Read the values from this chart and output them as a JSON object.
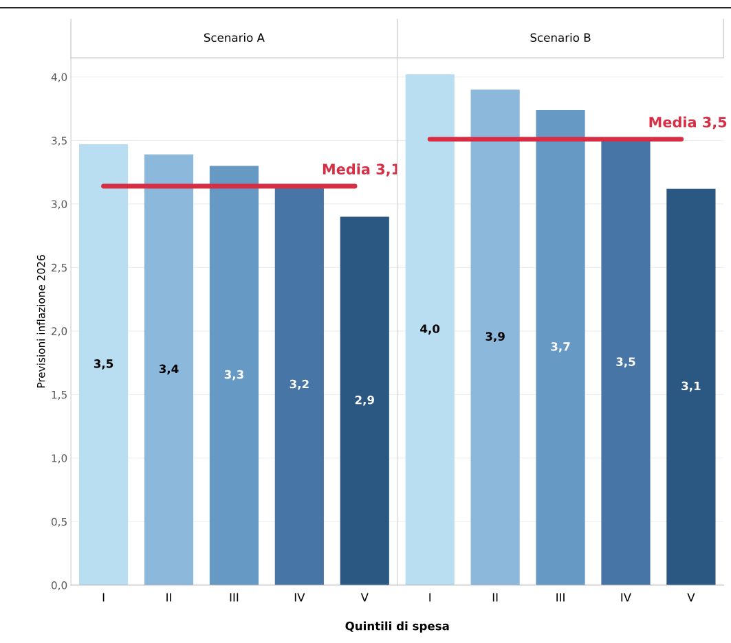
{
  "chart_data": [
    {
      "type": "bar",
      "title": "Scenario A",
      "xlabel": "Quintili di spesa",
      "ylabel": "Previsioni inflazione 2026",
      "categories": [
        "I",
        "II",
        "III",
        "IV",
        "V"
      ],
      "values": [
        3.47,
        3.39,
        3.3,
        3.15,
        2.9
      ],
      "value_labels": [
        "3,5",
        "3,4",
        "3,3",
        "3,2",
        "2,9"
      ],
      "colors": [
        "#badef1",
        "#8cb8dc",
        "#6799c5",
        "#4775a5",
        "#2b5783"
      ],
      "ylim": [
        0,
        4.15
      ],
      "yticks": [
        {
          "value": 0,
          "label": "0,0"
        },
        {
          "value": 0.5,
          "label": "0,5"
        },
        {
          "value": 1,
          "label": "1,0"
        },
        {
          "value": 1.5,
          "label": "1,5"
        },
        {
          "value": 2,
          "label": "2,0"
        },
        {
          "value": 2.5,
          "label": "2,5"
        },
        {
          "value": 3,
          "label": "3,0"
        },
        {
          "value": 3.5,
          "label": "3,5"
        },
        {
          "value": 4,
          "label": "4,0"
        }
      ],
      "grid": "y",
      "ref_lines": [
        {
          "axis": "y",
          "value": 3.14,
          "label": "Media 3,1",
          "color": "#d62f45"
        }
      ]
    },
    {
      "type": "bar",
      "title": "Scenario B",
      "categories": [
        "I",
        "II",
        "III",
        "IV",
        "V"
      ],
      "values": [
        4.02,
        3.9,
        3.74,
        3.5,
        3.12
      ],
      "value_labels": [
        "4,0",
        "3,9",
        "3,7",
        "3,5",
        "3,1"
      ],
      "colors": [
        "#badef1",
        "#8cb8dc",
        "#6799c5",
        "#4775a5",
        "#2b5783"
      ],
      "ylim": [
        0,
        4.15
      ],
      "grid": "y",
      "tick_labels": "x",
      "ref_lines": [
        {
          "axis": "y",
          "value": 3.51,
          "label": "Media 3,5",
          "color": "#d62f45"
        }
      ]
    }
  ]
}
